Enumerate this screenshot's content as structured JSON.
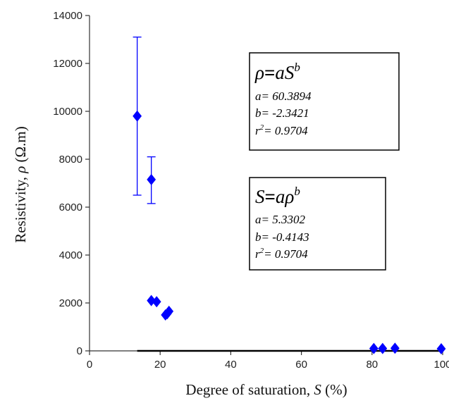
{
  "chart_data": {
    "type": "scatter",
    "title": "",
    "xlabel": "Degree of saturation, ",
    "xlabel_var": "S",
    "xlabel_unit": " (%)",
    "ylabel": "Resistivity, ",
    "ylabel_var": "ρ",
    "ylabel_unit": " (Ω.m)",
    "xlim": [
      0,
      100
    ],
    "ylim": [
      0,
      14000
    ],
    "x_ticks": [
      0,
      20,
      40,
      60,
      80,
      100
    ],
    "y_ticks": [
      0,
      2000,
      4000,
      6000,
      8000,
      10000,
      12000,
      14000
    ],
    "x_tick_labels": [
      "0",
      "20",
      "40",
      "60",
      "80",
      "100"
    ],
    "y_tick_labels": [
      "0",
      "2000",
      "4000",
      "6000",
      "8000",
      "10000",
      "12000",
      "14000"
    ],
    "grid": false,
    "series": [
      {
        "values": [
          {
            "x": 13.5,
            "y": 9800,
            "err_low": 6500,
            "err_high": 13100
          },
          {
            "x": 17.5,
            "y": 7150,
            "err_low": 6150,
            "err_high": 8100
          },
          {
            "x": 17.5,
            "y": 2100
          },
          {
            "x": 19.0,
            "y": 2050
          },
          {
            "x": 21.5,
            "y": 1500
          },
          {
            "x": 22.0,
            "y": 1550
          },
          {
            "x": 22.5,
            "y": 1650
          },
          {
            "x": 80.5,
            "y": 100
          },
          {
            "x": 83.0,
            "y": 100
          },
          {
            "x": 86.5,
            "y": 110
          },
          {
            "x": 101.0,
            "y": 90
          }
        ],
        "color": "#0000FF",
        "marker": "diamond"
      }
    ],
    "fit_curve": {
      "equation": "rho = a * S^b",
      "a": 60.3894,
      "b": -2.3421,
      "x_range": [
        13.5,
        100
      ],
      "color": "#000000"
    },
    "annotations": [
      {
        "main_lhs": "ρ",
        "main_eq": "=",
        "main_rhs_base": "aS",
        "main_rhs_sup": "b",
        "lines": [
          {
            "prefix": "a= ",
            "value": "60.3894"
          },
          {
            "prefix": "b= ",
            "value": "-2.3421"
          },
          {
            "prefix": "r",
            "sup": "2",
            "suffix": "= 0.9704"
          }
        ]
      },
      {
        "main_lhs": "S",
        "main_eq": "=",
        "main_rhs_base": "aρ",
        "main_rhs_sup": "b",
        "lines": [
          {
            "prefix": "a= ",
            "value": "5.3302"
          },
          {
            "prefix": "b= ",
            "value": "-0.4143"
          },
          {
            "prefix": "r",
            "sup": "2",
            "suffix": "= 0.9704"
          }
        ]
      }
    ]
  }
}
